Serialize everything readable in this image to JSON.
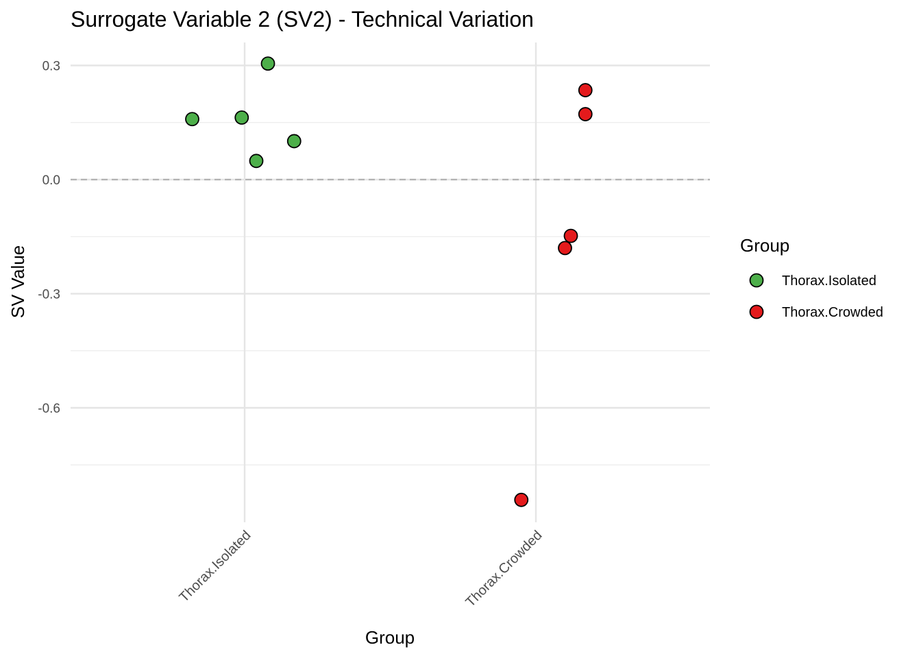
{
  "chart_data": {
    "type": "scatter",
    "title": "Surrogate Variable 2 (SV2) - Technical Variation",
    "xlabel": "Group",
    "ylabel": "SV Value",
    "categories": [
      "Thorax.Isolated",
      "Thorax.Crowded"
    ],
    "ylim": [
      -0.9,
      0.36
    ],
    "yticks": [
      0.3,
      0.0,
      -0.3,
      -0.6
    ],
    "ytick_labels": [
      "0.3",
      "0.0",
      "-0.3",
      "-0.6"
    ],
    "reference_line": {
      "y": 0.0,
      "style": "dashed"
    },
    "series": [
      {
        "name": "Thorax.Isolated",
        "color": "#4DAF4A",
        "points": [
          {
            "jitter": 0.08,
            "y": 0.305
          },
          {
            "jitter": -0.01,
            "y": 0.163
          },
          {
            "jitter": -0.18,
            "y": 0.159
          },
          {
            "jitter": 0.17,
            "y": 0.101
          },
          {
            "jitter": 0.04,
            "y": 0.049
          }
        ]
      },
      {
        "name": "Thorax.Crowded",
        "color": "#E41A1C",
        "points": [
          {
            "jitter": 0.17,
            "y": 0.235
          },
          {
            "jitter": 0.17,
            "y": 0.172
          },
          {
            "jitter": 0.12,
            "y": -0.148
          },
          {
            "jitter": 0.1,
            "y": -0.18
          },
          {
            "jitter": -0.05,
            "y": -0.842
          }
        ]
      }
    ],
    "legend": {
      "title": "Group",
      "position": "right",
      "entries": [
        "Thorax.Isolated",
        "Thorax.Crowded"
      ]
    },
    "grid": true
  }
}
